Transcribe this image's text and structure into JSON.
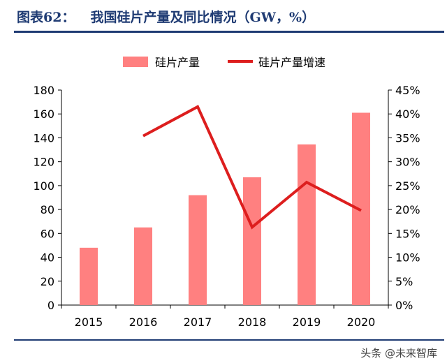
{
  "header": {
    "figure_label": "图表62：",
    "title": "我国硅片产量及同比情况（GW，%）"
  },
  "watermark": "头条 @未来智库",
  "colors": {
    "bar": "#ff8080",
    "line": "#dd1e1e",
    "title": "#1f3b73"
  },
  "chart_data": {
    "type": "bar+line",
    "categories": [
      "2015",
      "2016",
      "2017",
      "2018",
      "2019",
      "2020"
    ],
    "series": [
      {
        "name": "硅片产量",
        "type": "bar",
        "axis": "left",
        "values": [
          48,
          65,
          92,
          107,
          134.5,
          161
        ]
      },
      {
        "name": "硅片产量增速",
        "type": "line",
        "axis": "right",
        "values": [
          null,
          35.4,
          41.5,
          16.3,
          25.7,
          19.8
        ]
      }
    ],
    "y_left": {
      "min": 0,
      "max": 180,
      "step": 20,
      "ticks": [
        "0",
        "20",
        "40",
        "60",
        "80",
        "100",
        "120",
        "140",
        "160",
        "180"
      ]
    },
    "y_right": {
      "min": 0,
      "max": 45,
      "step": 5,
      "ticks": [
        "0%",
        "5%",
        "10%",
        "15%",
        "20%",
        "25%",
        "30%",
        "35%",
        "40%",
        "45%"
      ]
    },
    "legend_position": "top",
    "grid": false
  }
}
